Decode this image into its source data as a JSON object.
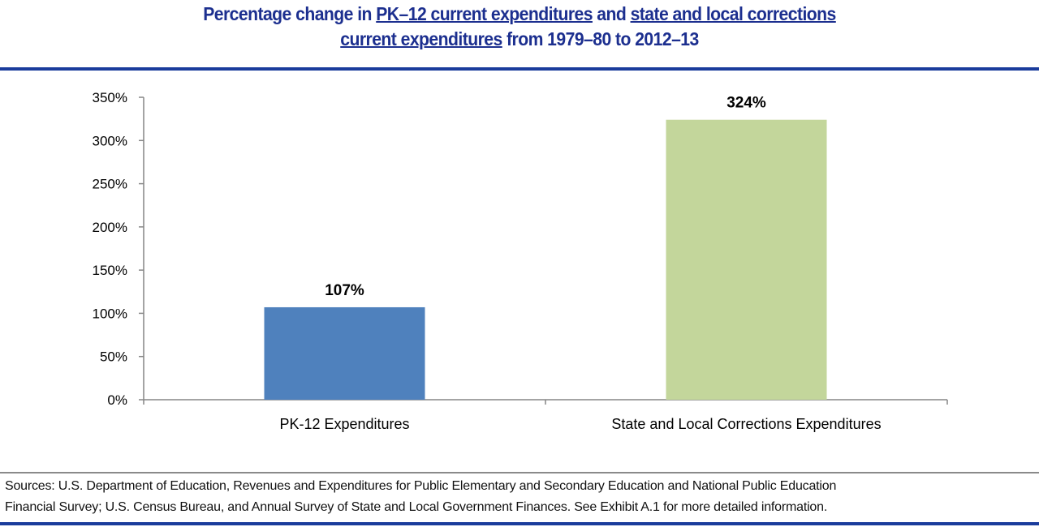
{
  "chart_data": {
    "type": "bar",
    "title_parts": {
      "line1": [
        "Percentage change in ",
        "PK–12 current expenditures",
        " and ",
        "state and local corrections"
      ],
      "line2": [
        "current expenditures",
        " from 1979–80 to 2012–13"
      ]
    },
    "categories": [
      "PK-12 Expenditures",
      "State and Local Corrections Expenditures"
    ],
    "values": [
      107,
      324
    ],
    "data_labels": [
      "107%",
      "324%"
    ],
    "colors": [
      "#4f81bd",
      "#c3d69b"
    ],
    "ylim": [
      0,
      350
    ],
    "yticks": [
      "0%",
      "50%",
      "100%",
      "150%",
      "200%",
      "250%",
      "300%",
      "350%"
    ],
    "grid": false,
    "xlabel": "",
    "ylabel": ""
  },
  "footer": {
    "sources_line1": "Sources: U.S. Department of Education, Revenues and Expenditures for Public Elementary and Secondary Education and National Public Education",
    "sources_line2": "Financial Survey; U.S. Census Bureau, and Annual Survey of State and Local Government Finances. See Exhibit A.1 for more detailed information."
  }
}
